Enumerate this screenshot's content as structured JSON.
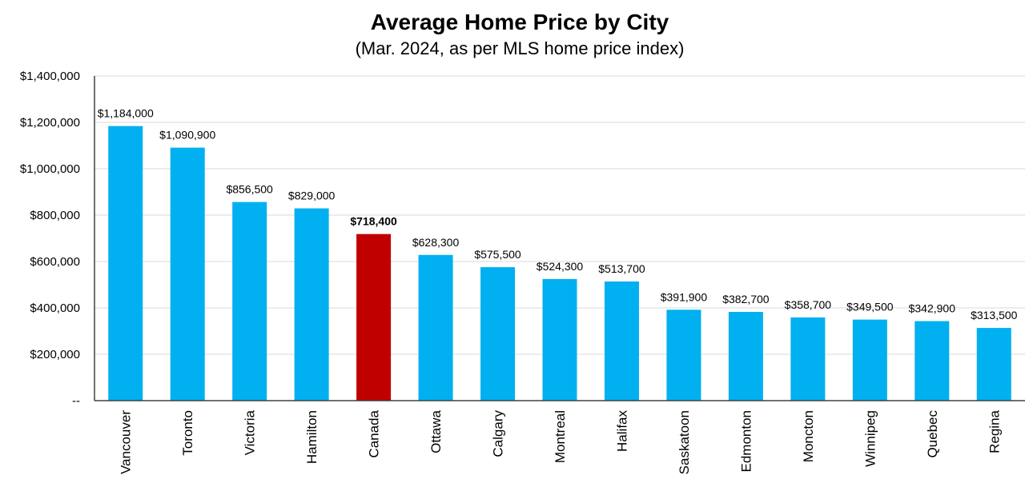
{
  "chart_data": {
    "type": "bar",
    "title": "Average Home Price by City",
    "subtitle": "(Mar. 2024, as per MLS home price index)",
    "xlabel": "",
    "ylabel": "",
    "ylim": [
      0,
      1400000
    ],
    "yticks": [
      0,
      200000,
      400000,
      600000,
      800000,
      1000000,
      1200000,
      1400000
    ],
    "ytick_labels": [
      "--",
      "$200,000",
      "$400,000",
      "$600,000",
      "$800,000",
      "$1,000,000",
      "$1,200,000",
      "$1,400,000"
    ],
    "grid": true,
    "legend": "none",
    "categories": [
      "Vancouver",
      "Toronto",
      "Victoria",
      "Hamilton",
      "Canada",
      "Ottawa",
      "Calgary",
      "Montreal",
      "Halifax",
      "Saskatoon",
      "Edmonton",
      "Moncton",
      "Winnipeg",
      "Quebec",
      "Regina"
    ],
    "values": [
      1184000,
      1090900,
      856500,
      829000,
      718400,
      628300,
      575500,
      524300,
      513700,
      391900,
      382700,
      358700,
      349500,
      342900,
      313500
    ],
    "data_labels": [
      "$1,184,000",
      "$1,090,900",
      "$856,500",
      "$829,000",
      "$718,400",
      "$628,300",
      "$575,500",
      "$524,300",
      "$513,700",
      "$391,900",
      "$382,700",
      "$358,700",
      "$349,500",
      "$342,900",
      "$313,500"
    ],
    "highlight_category": "Canada",
    "colors": {
      "bar": "#00B0F0",
      "highlight": "#C00000",
      "grid": "#D9D9D9",
      "axis": "#404040"
    }
  }
}
